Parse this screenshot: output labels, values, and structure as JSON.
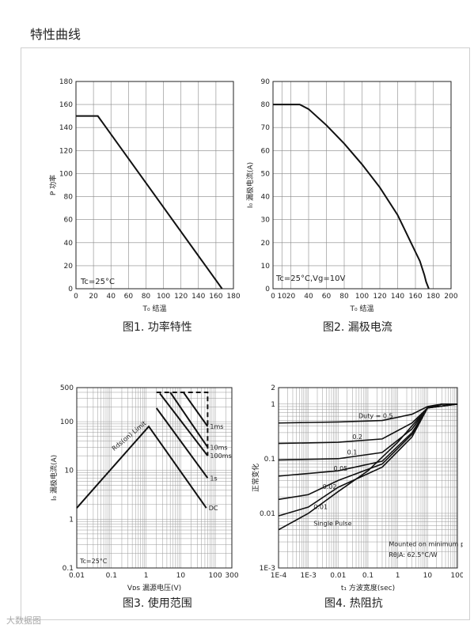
{
  "page": {
    "title": "特性曲线",
    "watermark": "大数据图"
  },
  "chart_data": [
    {
      "type": "line",
      "caption": "图1. 功率特性",
      "xlabel": "T₀ 结温",
      "ylabel": "P 功率",
      "xlim": [
        0,
        180
      ],
      "ylim": [
        0,
        180
      ],
      "xticks": [
        0,
        20,
        40,
        60,
        80,
        100,
        120,
        140,
        160,
        180
      ],
      "yticks": [
        0,
        20,
        40,
        60,
        80,
        100,
        120,
        140,
        160,
        180
      ],
      "annotations": [
        "Tc=25°C"
      ],
      "series": [
        {
          "x": [
            0,
            25,
            167
          ],
          "y": [
            150,
            150,
            0
          ]
        }
      ]
    },
    {
      "type": "line",
      "caption": "图2. 漏极电流",
      "xlabel": "T₀ 结温",
      "ylabel": "I₀ 漏极电流(A)",
      "xlim": [
        0,
        200
      ],
      "ylim": [
        0,
        90
      ],
      "xticks": [
        0,
        10,
        20,
        40,
        60,
        80,
        100,
        120,
        140,
        160,
        180,
        200
      ],
      "yticks": [
        0,
        10,
        20,
        30,
        40,
        50,
        60,
        70,
        80,
        90
      ],
      "annotations": [
        "Tc=25°C,Vg=10V"
      ],
      "series": [
        {
          "x": [
            0,
            30,
            40,
            60,
            80,
            100,
            120,
            140,
            155,
            165,
            170,
            172,
            175
          ],
          "y": [
            80,
            80,
            78,
            71,
            63,
            54,
            44,
            32,
            20,
            12,
            6,
            3,
            0
          ]
        }
      ]
    },
    {
      "type": "line",
      "caption": "图3. 使用范围",
      "xlabel": "Vᴅs 漏源电压(V)",
      "ylabel": "I₀ 漏极电流(A)",
      "xscale": "log",
      "yscale": "log",
      "xlim": [
        0.01,
        300
      ],
      "ylim": [
        0.1,
        500
      ],
      "xticks": [
        0.01,
        0.1,
        1,
        10,
        100,
        300
      ],
      "xtick_labels": [
        "0.01",
        "0.1",
        "1",
        "10",
        "100",
        "300"
      ],
      "yticks": [
        0.1,
        1,
        10,
        100,
        500
      ],
      "ytick_labels": [
        "0.1",
        "1",
        "10",
        "100",
        "500"
      ],
      "annotations": [
        "Rds(on) Limit",
        "Tc=25°C"
      ],
      "series": [
        {
          "name": "DC",
          "x": [
            0.01,
            1.2,
            55
          ],
          "y": [
            1.7,
            80,
            1.7
          ]
        },
        {
          "name": "1s",
          "x": [
            2,
            60
          ],
          "y": [
            190,
            7
          ]
        },
        {
          "name": "100ms",
          "x": [
            2.5,
            60
          ],
          "y": [
            380,
            20
          ]
        },
        {
          "name": "10ms",
          "x": [
            5,
            60
          ],
          "y": [
            400,
            30
          ]
        },
        {
          "name": "1ms",
          "x": [
            12,
            60
          ],
          "y": [
            400,
            80
          ]
        }
      ]
    },
    {
      "type": "line",
      "caption": "图4. 热阻抗",
      "xlabel": "t₁ 方波宽度(sec)",
      "ylabel": "正常变化",
      "xscale": "log",
      "yscale": "log",
      "xlim": [
        0.0001,
        100
      ],
      "ylim": [
        0.001,
        2
      ],
      "xticks": [
        0.0001,
        0.001,
        0.01,
        0.1,
        1,
        10,
        100
      ],
      "xtick_labels": [
        "1E-4",
        "1E-3",
        "0.01",
        "0.1",
        "1",
        "10",
        "100"
      ],
      "yticks": [
        0.001,
        0.01,
        0.1,
        1,
        2
      ],
      "ytick_labels": [
        "1E-3",
        "0.01",
        "0.1",
        "1",
        "2"
      ],
      "annotations": [
        "Duty = 0.5",
        "Single Pulse",
        "Mounted on minimum pad",
        "RθJA: 62.5°C/W"
      ],
      "series": [
        {
          "name": "0.5",
          "x": [
            0.0001,
            0.01,
            0.3,
            3,
            10,
            30,
            100
          ],
          "y": [
            0.45,
            0.47,
            0.5,
            0.65,
            0.9,
            1.0,
            1.0
          ]
        },
        {
          "name": "0.2",
          "x": [
            0.0001,
            0.01,
            0.3,
            3,
            10,
            30,
            100
          ],
          "y": [
            0.19,
            0.2,
            0.23,
            0.45,
            0.85,
            1.0,
            1.0
          ]
        },
        {
          "name": "0.1",
          "x": [
            0.0001,
            0.01,
            0.3,
            3,
            10,
            30,
            100
          ],
          "y": [
            0.095,
            0.1,
            0.13,
            0.35,
            0.85,
            1.0,
            1.0
          ]
        },
        {
          "name": "0.05",
          "x": [
            0.0001,
            0.01,
            0.3,
            3,
            10,
            30,
            100
          ],
          "y": [
            0.048,
            0.06,
            0.09,
            0.3,
            0.85,
            1.0,
            1.0
          ]
        },
        {
          "name": "0.02",
          "x": [
            0.0001,
            0.001,
            0.01,
            0.3,
            3,
            10,
            100
          ],
          "y": [
            0.018,
            0.022,
            0.04,
            0.08,
            0.28,
            0.85,
            1.0
          ]
        },
        {
          "name": "0.01",
          "x": [
            0.0001,
            0.001,
            0.01,
            0.3,
            3,
            10,
            100
          ],
          "y": [
            0.009,
            0.013,
            0.03,
            0.07,
            0.25,
            0.85,
            1.0
          ]
        },
        {
          "name": "Single Pulse",
          "x": [
            0.0001,
            0.001,
            0.01,
            0.1,
            1,
            10,
            100
          ],
          "y": [
            0.005,
            0.01,
            0.025,
            0.06,
            0.2,
            0.85,
            1.0
          ]
        }
      ]
    }
  ]
}
